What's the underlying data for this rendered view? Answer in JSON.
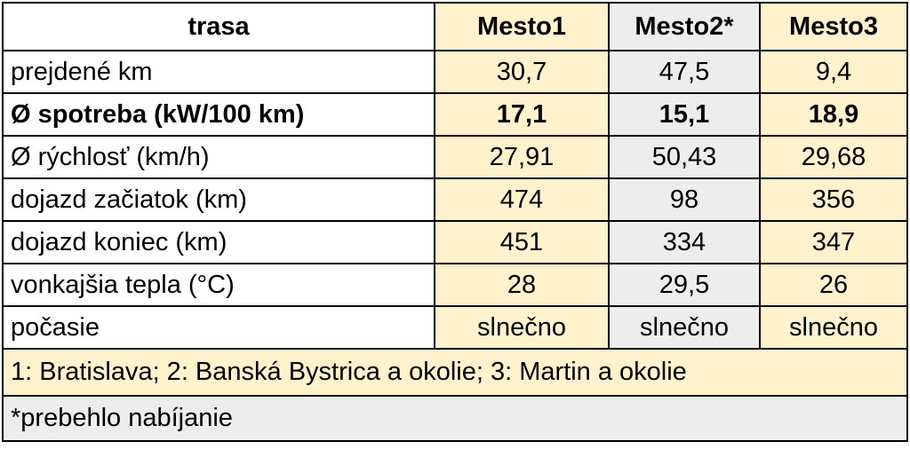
{
  "table": {
    "header": [
      "trasa",
      "Mesto1",
      "Mesto2*",
      "Mesto3"
    ],
    "rows": [
      [
        "prejdené km",
        "30,7",
        "47,5",
        "9,4"
      ],
      [
        "Ø spotreba (kW/100 km)",
        "17,1",
        "15,1",
        "18,9"
      ],
      [
        "Ø rýchlosť (km/h)",
        "27,91",
        "50,43",
        "29,68"
      ],
      [
        "dojazd začiatok (km)",
        "474",
        "98",
        "356"
      ],
      [
        "dojazd koniec (km)",
        "451",
        "334",
        "347"
      ],
      [
        "vonkajšia tepla (°C)",
        "28",
        "29,5",
        "26"
      ],
      [
        "počasie",
        "slnečno",
        "slnečno",
        "slnečno"
      ]
    ],
    "bold_row": 1,
    "notes": [
      "1: Bratislava; 2: Banská Bystrica a okolie; 3: Martin a okolie",
      "*prebehlo nabíjanie"
    ]
  }
}
